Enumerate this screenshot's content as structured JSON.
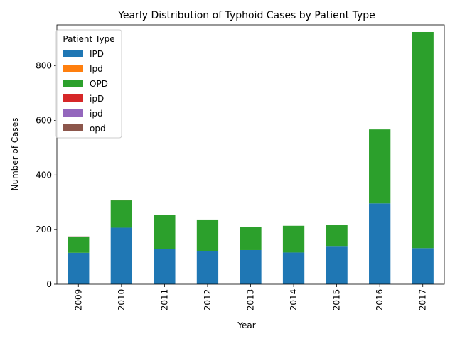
{
  "chart_data": {
    "type": "bar",
    "stacked": true,
    "title": "Yearly Distribution of Typhoid Cases by Patient Type",
    "xlabel": "Year",
    "ylabel": "Number of Cases",
    "ylim": [
      0,
      950
    ],
    "yticks": [
      0,
      200,
      400,
      600,
      800
    ],
    "grid": false,
    "legend": {
      "title": "Patient Type",
      "placement": "top-left"
    },
    "categories": [
      "2009",
      "2010",
      "2011",
      "2012",
      "2013",
      "2014",
      "2015",
      "2016",
      "2017"
    ],
    "series": [
      {
        "name": "IPD",
        "color": "#1f77b4",
        "values": [
          115,
          207,
          128,
          122,
          125,
          116,
          140,
          296,
          132
        ]
      },
      {
        "name": "Ipd",
        "color": "#ff7f0e",
        "values": [
          0,
          0,
          0,
          0,
          0,
          0,
          0,
          0,
          0
        ]
      },
      {
        "name": "OPD",
        "color": "#2ca02c",
        "values": [
          57,
          100,
          127,
          115,
          85,
          98,
          76,
          271,
          792
        ]
      },
      {
        "name": "ipD",
        "color": "#d62728",
        "values": [
          1,
          1,
          0,
          0,
          0,
          0,
          0,
          0,
          0
        ]
      },
      {
        "name": "ipd",
        "color": "#9467bd",
        "values": [
          0,
          0,
          0,
          0,
          0,
          0,
          0,
          0,
          0
        ]
      },
      {
        "name": "opd",
        "color": "#8c564b",
        "values": [
          2,
          1,
          0,
          0,
          0,
          0,
          0,
          0,
          0
        ]
      }
    ]
  }
}
